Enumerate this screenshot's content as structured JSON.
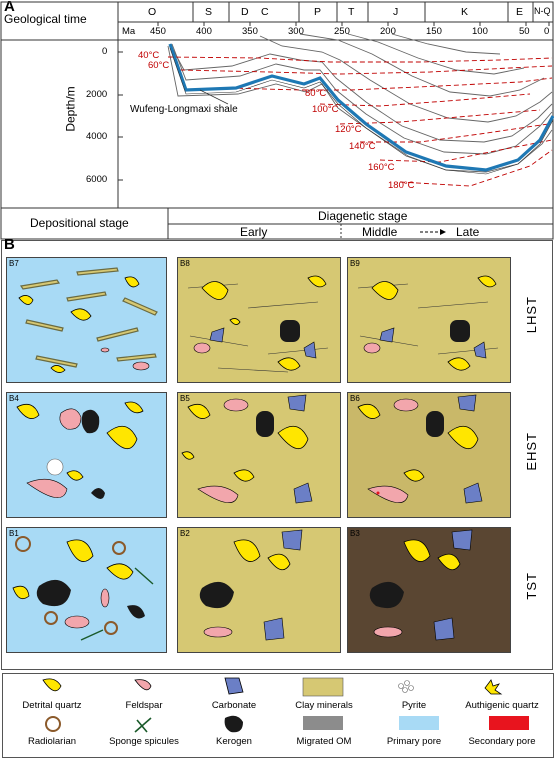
{
  "panel_a": {
    "letter": "A",
    "time_label": "Geological time",
    "periods": [
      "O",
      "S",
      "D",
      "C",
      "P",
      "T",
      "J",
      "K",
      "E",
      "N-Q"
    ],
    "ma_label": "Ma",
    "ma_ticks": [
      "450",
      "400",
      "350",
      "300",
      "250",
      "200",
      "150",
      "100",
      "50",
      "0"
    ],
    "depth_label": "Depth/m",
    "depth_ticks": [
      "0",
      "2000",
      "4000",
      "6000"
    ],
    "temps": [
      "40°C",
      "60°C",
      "80°C",
      "100°C",
      "120°C",
      "140°C",
      "160°C",
      "180°C"
    ],
    "shale_label": "Wufeng-Longmaxi shale",
    "depositional_stage": "Depositional stage",
    "diagenetic_stage": "Diagenetic stage",
    "early": "Early",
    "middle": "Middle",
    "late": "Late"
  },
  "panel_b": {
    "letter": "B",
    "rows": [
      "LHST",
      "EHST",
      "TST"
    ],
    "thumbs": [
      [
        "B7",
        "B8",
        "B9"
      ],
      [
        "B4",
        "B5",
        "B6"
      ],
      [
        "B1",
        "B2",
        "B3"
      ]
    ]
  },
  "legend": {
    "items": [
      "Detrital quartz",
      "Feldspar",
      "Carbonate",
      "Clay minerals",
      "Pyrite",
      "Authigenic quartz",
      "Radiolarian",
      "Sponge spicules",
      "Kerogen",
      "Migrated OM",
      "Primary pore",
      "Secondary pore"
    ]
  },
  "colors": {
    "quartz": "#ffe600",
    "feldspar": "#f2a6ac",
    "carbonate": "#6b7fc6",
    "clay": "#d6c873",
    "pore": "#a8daf5",
    "kerogen": "#1a1a1a",
    "secondary_pore": "#e8141e",
    "shale_line": "#1e78b4",
    "temp_line": "#c00000"
  }
}
